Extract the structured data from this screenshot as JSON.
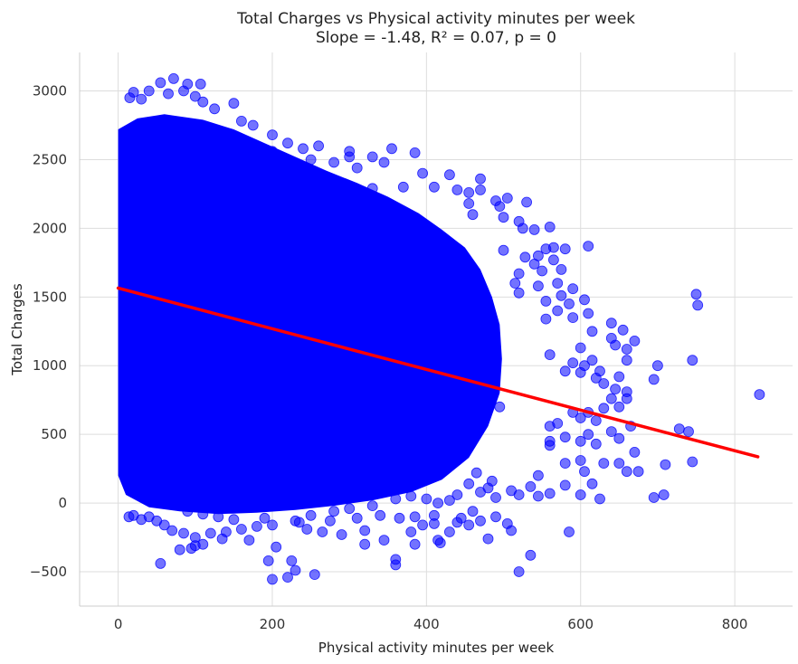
{
  "chart_data": {
    "type": "scatter",
    "title": "Total Charges vs Physical activity minutes per week",
    "subtitle": "Slope = -1.48, R² = 0.07, p = 0",
    "xlabel": "Physical activity minutes per week",
    "ylabel": "Total Charges",
    "xlim": [
      -50,
      875
    ],
    "ylim": [
      -750,
      3280
    ],
    "xticks": [
      0,
      200,
      400,
      600,
      800
    ],
    "yticks": [
      -500,
      0,
      500,
      1000,
      1500,
      2000,
      2500,
      3000
    ],
    "ytick_labels": [
      "−500",
      "0",
      "500",
      "1000",
      "1500",
      "2000",
      "2500",
      "3000"
    ],
    "xtick_labels": [
      "0",
      "200",
      "400",
      "600",
      "800"
    ],
    "grid": true,
    "point_color": "#0000ff",
    "point_alpha": 0.55,
    "line_color": "#ff0000",
    "regression": {
      "slope": -1.48,
      "intercept": 1565,
      "x_start": 0,
      "x_end": 830
    },
    "series": [
      {
        "points": [
          [
            72,
            3090
          ],
          [
            90,
            3050
          ],
          [
            107,
            3050
          ],
          [
            55,
            3060
          ],
          [
            40,
            3000
          ],
          [
            20,
            2990
          ],
          [
            15,
            2950
          ],
          [
            85,
            3000
          ],
          [
            100,
            2960
          ],
          [
            65,
            2980
          ],
          [
            30,
            2940
          ],
          [
            110,
            2920
          ],
          [
            150,
            2910
          ],
          [
            125,
            2870
          ],
          [
            160,
            2780
          ],
          [
            175,
            2750
          ],
          [
            200,
            2680
          ],
          [
            220,
            2620
          ],
          [
            240,
            2580
          ],
          [
            260,
            2600
          ],
          [
            300,
            2560
          ],
          [
            330,
            2520
          ],
          [
            355,
            2580
          ],
          [
            385,
            2550
          ],
          [
            300,
            2520
          ],
          [
            345,
            2480
          ],
          [
            200,
            2560
          ],
          [
            250,
            2500
          ],
          [
            280,
            2480
          ],
          [
            310,
            2440
          ],
          [
            395,
            2400
          ],
          [
            430,
            2390
          ],
          [
            470,
            2360
          ],
          [
            410,
            2300
          ],
          [
            440,
            2280
          ],
          [
            470,
            2280
          ],
          [
            455,
            2260
          ],
          [
            370,
            2300
          ],
          [
            285,
            2340
          ],
          [
            330,
            2290
          ],
          [
            490,
            2200
          ],
          [
            505,
            2220
          ],
          [
            495,
            2160
          ],
          [
            530,
            2190
          ],
          [
            520,
            2050
          ],
          [
            560,
            2010
          ],
          [
            460,
            2100
          ],
          [
            455,
            2180
          ],
          [
            500,
            2080
          ],
          [
            525,
            2000
          ],
          [
            540,
            1990
          ],
          [
            565,
            1860
          ],
          [
            610,
            1870
          ],
          [
            555,
            1850
          ],
          [
            580,
            1850
          ],
          [
            545,
            1800
          ],
          [
            528,
            1790
          ],
          [
            500,
            1840
          ],
          [
            565,
            1770
          ],
          [
            575,
            1700
          ],
          [
            550,
            1690
          ],
          [
            540,
            1740
          ],
          [
            520,
            1670
          ],
          [
            515,
            1600
          ],
          [
            545,
            1580
          ],
          [
            570,
            1600
          ],
          [
            590,
            1560
          ],
          [
            520,
            1530
          ],
          [
            555,
            1470
          ],
          [
            585,
            1450
          ],
          [
            575,
            1510
          ],
          [
            605,
            1480
          ],
          [
            555,
            1340
          ],
          [
            570,
            1400
          ],
          [
            590,
            1350
          ],
          [
            610,
            1380
          ],
          [
            640,
            1310
          ],
          [
            615,
            1250
          ],
          [
            655,
            1260
          ],
          [
            640,
            1200
          ],
          [
            645,
            1150
          ],
          [
            600,
            1130
          ],
          [
            670,
            1180
          ],
          [
            660,
            1120
          ],
          [
            660,
            1040
          ],
          [
            615,
            1040
          ],
          [
            605,
            1000
          ],
          [
            625,
            960
          ],
          [
            650,
            920
          ],
          [
            700,
            1000
          ],
          [
            695,
            900
          ],
          [
            560,
            1080
          ],
          [
            590,
            1020
          ],
          [
            580,
            960
          ],
          [
            600,
            950
          ],
          [
            620,
            910
          ],
          [
            630,
            870
          ],
          [
            645,
            830
          ],
          [
            660,
            810
          ],
          [
            640,
            760
          ],
          [
            660,
            760
          ],
          [
            650,
            700
          ],
          [
            630,
            690
          ],
          [
            610,
            660
          ],
          [
            590,
            660
          ],
          [
            600,
            620
          ],
          [
            570,
            580
          ],
          [
            560,
            560
          ],
          [
            620,
            600
          ],
          [
            665,
            560
          ],
          [
            640,
            520
          ],
          [
            610,
            500
          ],
          [
            580,
            480
          ],
          [
            560,
            450
          ],
          [
            600,
            450
          ],
          [
            620,
            430
          ],
          [
            650,
            470
          ],
          [
            670,
            370
          ],
          [
            650,
            290
          ],
          [
            630,
            290
          ],
          [
            605,
            230
          ],
          [
            615,
            140
          ],
          [
            580,
            130
          ],
          [
            545,
            200
          ],
          [
            560,
            70
          ],
          [
            545,
            50
          ],
          [
            600,
            60
          ],
          [
            625,
            30
          ],
          [
            660,
            230
          ],
          [
            675,
            230
          ],
          [
            695,
            40
          ],
          [
            708,
            60
          ],
          [
            710,
            280
          ],
          [
            728,
            540
          ],
          [
            740,
            520
          ],
          [
            745,
            300
          ],
          [
            745,
            1040
          ],
          [
            750,
            1520
          ],
          [
            752,
            1440
          ],
          [
            832,
            790
          ],
          [
            560,
            420
          ],
          [
            580,
            290
          ],
          [
            600,
            310
          ],
          [
            535,
            120
          ],
          [
            520,
            60
          ],
          [
            510,
            90
          ],
          [
            480,
            110
          ],
          [
            455,
            140
          ],
          [
            470,
            80
          ],
          [
            490,
            40
          ],
          [
            485,
            160
          ],
          [
            465,
            220
          ],
          [
            440,
            60
          ],
          [
            430,
            20
          ],
          [
            415,
            0
          ],
          [
            400,
            30
          ],
          [
            380,
            50
          ],
          [
            360,
            30
          ],
          [
            330,
            -20
          ],
          [
            300,
            -40
          ],
          [
            280,
            -60
          ],
          [
            250,
            -90
          ],
          [
            230,
            -130
          ],
          [
            200,
            -160
          ],
          [
            180,
            -170
          ],
          [
            160,
            -190
          ],
          [
            140,
            -210
          ],
          [
            120,
            -220
          ],
          [
            100,
            -250
          ],
          [
            85,
            -220
          ],
          [
            70,
            -200
          ],
          [
            60,
            -160
          ],
          [
            50,
            -130
          ],
          [
            40,
            -100
          ],
          [
            30,
            -120
          ],
          [
            20,
            -90
          ],
          [
            14,
            -100
          ],
          [
            110,
            -300
          ],
          [
            95,
            -330
          ],
          [
            80,
            -340
          ],
          [
            55,
            -440
          ],
          [
            100,
            -310
          ],
          [
            135,
            -260
          ],
          [
            170,
            -270
          ],
          [
            205,
            -320
          ],
          [
            195,
            -420
          ],
          [
            225,
            -420
          ],
          [
            230,
            -490
          ],
          [
            200,
            -555
          ],
          [
            220,
            -540
          ],
          [
            255,
            -520
          ],
          [
            320,
            -300
          ],
          [
            345,
            -270
          ],
          [
            360,
            -410
          ],
          [
            360,
            -450
          ],
          [
            385,
            -300
          ],
          [
            415,
            -270
          ],
          [
            418,
            -290
          ],
          [
            480,
            -260
          ],
          [
            510,
            -200
          ],
          [
            520,
            -500
          ],
          [
            535,
            -380
          ],
          [
            585,
            -210
          ],
          [
            320,
            -200
          ],
          [
            290,
            -230
          ],
          [
            265,
            -210
          ],
          [
            245,
            -190
          ],
          [
            430,
            -210
          ],
          [
            380,
            -210
          ],
          [
            395,
            -160
          ],
          [
            410,
            -150
          ],
          [
            440,
            -140
          ],
          [
            455,
            -160
          ],
          [
            470,
            -130
          ],
          [
            505,
            -150
          ],
          [
            490,
            -100
          ],
          [
            460,
            -60
          ],
          [
            445,
            -110
          ],
          [
            410,
            -90
          ],
          [
            385,
            -100
          ],
          [
            365,
            -110
          ],
          [
            340,
            -90
          ],
          [
            310,
            -110
          ],
          [
            275,
            -130
          ],
          [
            235,
            -140
          ],
          [
            190,
            -110
          ],
          [
            150,
            -120
          ],
          [
            130,
            -100
          ],
          [
            110,
            -80
          ],
          [
            90,
            -60
          ],
          [
            10,
            400
          ],
          [
            15,
            700
          ],
          [
            25,
            1100
          ],
          [
            35,
            1600
          ],
          [
            45,
            2100
          ],
          [
            55,
            2500
          ],
          [
            65,
            2700
          ],
          [
            75,
            1200
          ],
          [
            85,
            800
          ],
          [
            95,
            1500
          ],
          [
            105,
            2300
          ],
          [
            115,
            1900
          ],
          [
            125,
            600
          ],
          [
            135,
            1000
          ],
          [
            145,
            2200
          ],
          [
            155,
            1700
          ],
          [
            165,
            900
          ],
          [
            175,
            1400
          ],
          [
            185,
            2100
          ],
          [
            195,
            500
          ],
          [
            205,
            1300
          ],
          [
            215,
            1800
          ],
          [
            225,
            2300
          ],
          [
            235,
            700
          ],
          [
            245,
            1100
          ],
          [
            255,
            1900
          ],
          [
            265,
            1500
          ],
          [
            275,
            900
          ],
          [
            285,
            2000
          ],
          [
            295,
            1200
          ],
          [
            305,
            600
          ],
          [
            315,
            1700
          ],
          [
            325,
            2100
          ],
          [
            335,
            1000
          ],
          [
            345,
            1400
          ],
          [
            355,
            800
          ],
          [
            365,
            1800
          ],
          [
            375,
            1200
          ],
          [
            385,
            600
          ],
          [
            395,
            1500
          ],
          [
            405,
            2000
          ],
          [
            415,
            900
          ],
          [
            425,
            1300
          ],
          [
            435,
            1700
          ],
          [
            445,
            700
          ],
          [
            455,
            1100
          ],
          [
            465,
            1500
          ],
          [
            475,
            900
          ],
          [
            485,
            1300
          ],
          [
            495,
            700
          ]
        ]
      }
    ]
  }
}
